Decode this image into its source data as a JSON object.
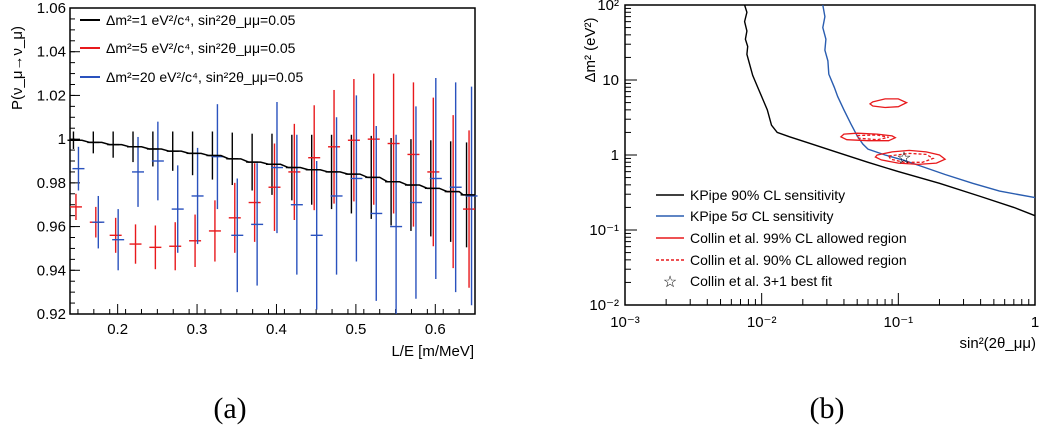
{
  "chart_data": [
    {
      "type": "scatter",
      "panel_label": "(a)",
      "ylabel": "P(ν_μ→ν_μ)",
      "xlabel": "L/E [m/MeV]",
      "xlim": [
        0.14,
        0.65
      ],
      "ylim": [
        0.92,
        1.06
      ],
      "xticks": [
        "0.2",
        "0.3",
        "0.4",
        "0.5",
        "0.6"
      ],
      "yticks": [
        "0.92",
        "0.94",
        "0.96",
        "0.98",
        "1",
        "1.02",
        "1.04",
        "1.06"
      ],
      "legend_position": "top-left",
      "colors": {
        "black": "#000000",
        "red": "#e8191c",
        "blue": "#2a52be"
      },
      "series": [
        {
          "name": "Δm²=1 eV²/c⁴, sin²2θ_μμ=0.05",
          "color": "#000000",
          "x": [
            0.1475,
            0.1725,
            0.1975,
            0.2225,
            0.2475,
            0.2725,
            0.2975,
            0.3225,
            0.3475,
            0.3725,
            0.3975,
            0.4225,
            0.4475,
            0.4725,
            0.4975,
            0.5225,
            0.5475,
            0.5725,
            0.5975,
            0.6225,
            0.6425
          ],
          "y": [
            0.9995,
            0.9985,
            0.9975,
            0.9965,
            0.9955,
            0.9945,
            0.9935,
            0.9925,
            0.991,
            0.9895,
            0.9885,
            0.987,
            0.986,
            0.985,
            0.984,
            0.9825,
            0.9805,
            0.979,
            0.9775,
            0.976,
            0.9745
          ],
          "err": [
            0.004,
            0.005,
            0.006,
            0.007,
            0.008,
            0.009,
            0.01,
            0.011,
            0.012,
            0.013,
            0.014,
            0.015,
            0.016,
            0.017,
            0.018,
            0.019,
            0.02,
            0.021,
            0.022,
            0.023,
            0.024
          ]
        },
        {
          "name": "Δm²=5 eV²/c⁴, sin²2θ_μμ=0.05",
          "color": "#e8191c",
          "x": [
            0.1475,
            0.1725,
            0.1975,
            0.2225,
            0.2475,
            0.2725,
            0.2975,
            0.3225,
            0.3475,
            0.3725,
            0.3975,
            0.4225,
            0.4475,
            0.4725,
            0.4975,
            0.5225,
            0.5475,
            0.5725,
            0.5975,
            0.6225,
            0.6425
          ],
          "y": [
            0.969,
            0.962,
            0.956,
            0.952,
            0.9505,
            0.951,
            0.9535,
            0.958,
            0.964,
            0.971,
            0.978,
            0.985,
            0.9915,
            0.9965,
            0.9995,
            1.0,
            0.998,
            0.993,
            0.985,
            0.976,
            0.968
          ],
          "err": [
            0.006,
            0.007,
            0.008,
            0.009,
            0.01,
            0.011,
            0.012,
            0.014,
            0.016,
            0.018,
            0.02,
            0.022,
            0.024,
            0.026,
            0.028,
            0.03,
            0.032,
            0.033,
            0.034,
            0.035,
            0.036
          ]
        },
        {
          "name": "Δm²=20 eV²/c⁴, sin²2θ_μμ=0.05",
          "color": "#2a52be",
          "x": [
            0.1475,
            0.1725,
            0.1975,
            0.2225,
            0.2475,
            0.2725,
            0.2975,
            0.3225,
            0.3475,
            0.3725,
            0.3975,
            0.4225,
            0.4475,
            0.4725,
            0.4975,
            0.5225,
            0.5475,
            0.5725,
            0.5975,
            0.6225,
            0.6425
          ],
          "y": [
            0.9865,
            0.962,
            0.954,
            0.985,
            0.99,
            0.968,
            0.974,
            0.992,
            0.956,
            0.961,
            0.987,
            0.97,
            0.956,
            0.974,
            0.982,
            0.966,
            0.96,
            0.971,
            0.982,
            0.978,
            0.974
          ],
          "err": [
            0.01,
            0.012,
            0.014,
            0.016,
            0.018,
            0.02,
            0.022,
            0.024,
            0.026,
            0.028,
            0.03,
            0.032,
            0.034,
            0.036,
            0.038,
            0.04,
            0.042,
            0.044,
            0.046,
            0.048,
            0.05
          ]
        }
      ]
    },
    {
      "type": "line",
      "panel_label": "(b)",
      "ylabel": "Δm² (eV²)",
      "xlabel": "sin²(2θ_μμ)",
      "x_scale": "log",
      "y_scale": "log",
      "xlim": [
        0.001,
        1
      ],
      "ylim": [
        0.01,
        100
      ],
      "xticks": [
        "10⁻³",
        "10⁻²",
        "10⁻¹",
        "1"
      ],
      "yticks": [
        "10⁻²",
        "10⁻¹",
        "1",
        "10",
        "10²"
      ],
      "legend_position": "bottom-left",
      "series": [
        {
          "name": "KPipe 90% CL sensitivity",
          "color": "#000000",
          "x": [
            0.0075,
            0.0078,
            0.0075,
            0.0078,
            0.0076,
            0.0079,
            0.0078,
            0.0081,
            0.0086,
            0.0095,
            0.011,
            0.0118,
            0.013,
            0.016,
            0.022,
            0.035,
            0.06,
            0.1,
            0.2,
            0.4,
            0.7,
            1.0
          ],
          "y": [
            100,
            80,
            60,
            45,
            35,
            28,
            22,
            17,
            11.5,
            7.5,
            4.0,
            2.5,
            2.0,
            1.75,
            1.45,
            1.1,
            0.8,
            0.6,
            0.42,
            0.28,
            0.2,
            0.155
          ]
        },
        {
          "name": "KPipe 5σ CL sensitivity",
          "color": "#2a5db0",
          "x": [
            0.028,
            0.029,
            0.028,
            0.0295,
            0.029,
            0.0305,
            0.031,
            0.034,
            0.036,
            0.04,
            0.045,
            0.05,
            0.055,
            0.06,
            0.08,
            0.11,
            0.15,
            0.22,
            0.35,
            0.55,
            1.0
          ],
          "y": [
            100,
            70,
            50,
            35,
            25,
            18,
            12,
            8,
            6,
            4,
            2.6,
            1.8,
            1.4,
            1.2,
            1.0,
            0.85,
            0.7,
            0.55,
            0.42,
            0.33,
            0.27
          ]
        },
        {
          "name": "Collin et al. 99% CL allowed region",
          "color": "#e8191c"
        },
        {
          "name": "Collin et al. 90% CL allowed region",
          "color": "#e8191c",
          "dashed": true
        }
      ],
      "best_fit": {
        "name": "Collin et al. 3+1 best fit",
        "x": 0.11,
        "y": 0.93,
        "marker": "star"
      },
      "regions_99": [
        {
          "x": [
            0.065,
            0.08,
            0.1,
            0.115,
            0.1,
            0.08,
            0.065,
            0.062
          ],
          "y": [
            5.1,
            5.6,
            5.6,
            5.0,
            4.4,
            4.3,
            4.5,
            4.8
          ]
        },
        {
          "x": [
            0.04,
            0.05,
            0.07,
            0.09,
            0.095,
            0.085,
            0.06,
            0.042,
            0.038
          ],
          "y": [
            1.9,
            1.95,
            1.9,
            1.8,
            1.7,
            1.55,
            1.55,
            1.6,
            1.75
          ]
        },
        {
          "x": [
            0.07,
            0.09,
            0.12,
            0.16,
            0.2,
            0.22,
            0.19,
            0.14,
            0.1,
            0.075,
            0.068
          ],
          "y": [
            1.0,
            1.1,
            1.15,
            1.1,
            1.0,
            0.88,
            0.78,
            0.75,
            0.78,
            0.86,
            0.94
          ]
        }
      ],
      "regions_90": [
        {
          "x": [
            0.05,
            0.07,
            0.085,
            0.07,
            0.05
          ],
          "y": [
            1.82,
            1.85,
            1.72,
            1.6,
            1.68
          ]
        },
        {
          "x": [
            0.085,
            0.12,
            0.16,
            0.18,
            0.15,
            0.11,
            0.088
          ],
          "y": [
            0.97,
            1.05,
            1.02,
            0.9,
            0.8,
            0.8,
            0.88
          ]
        }
      ]
    }
  ]
}
